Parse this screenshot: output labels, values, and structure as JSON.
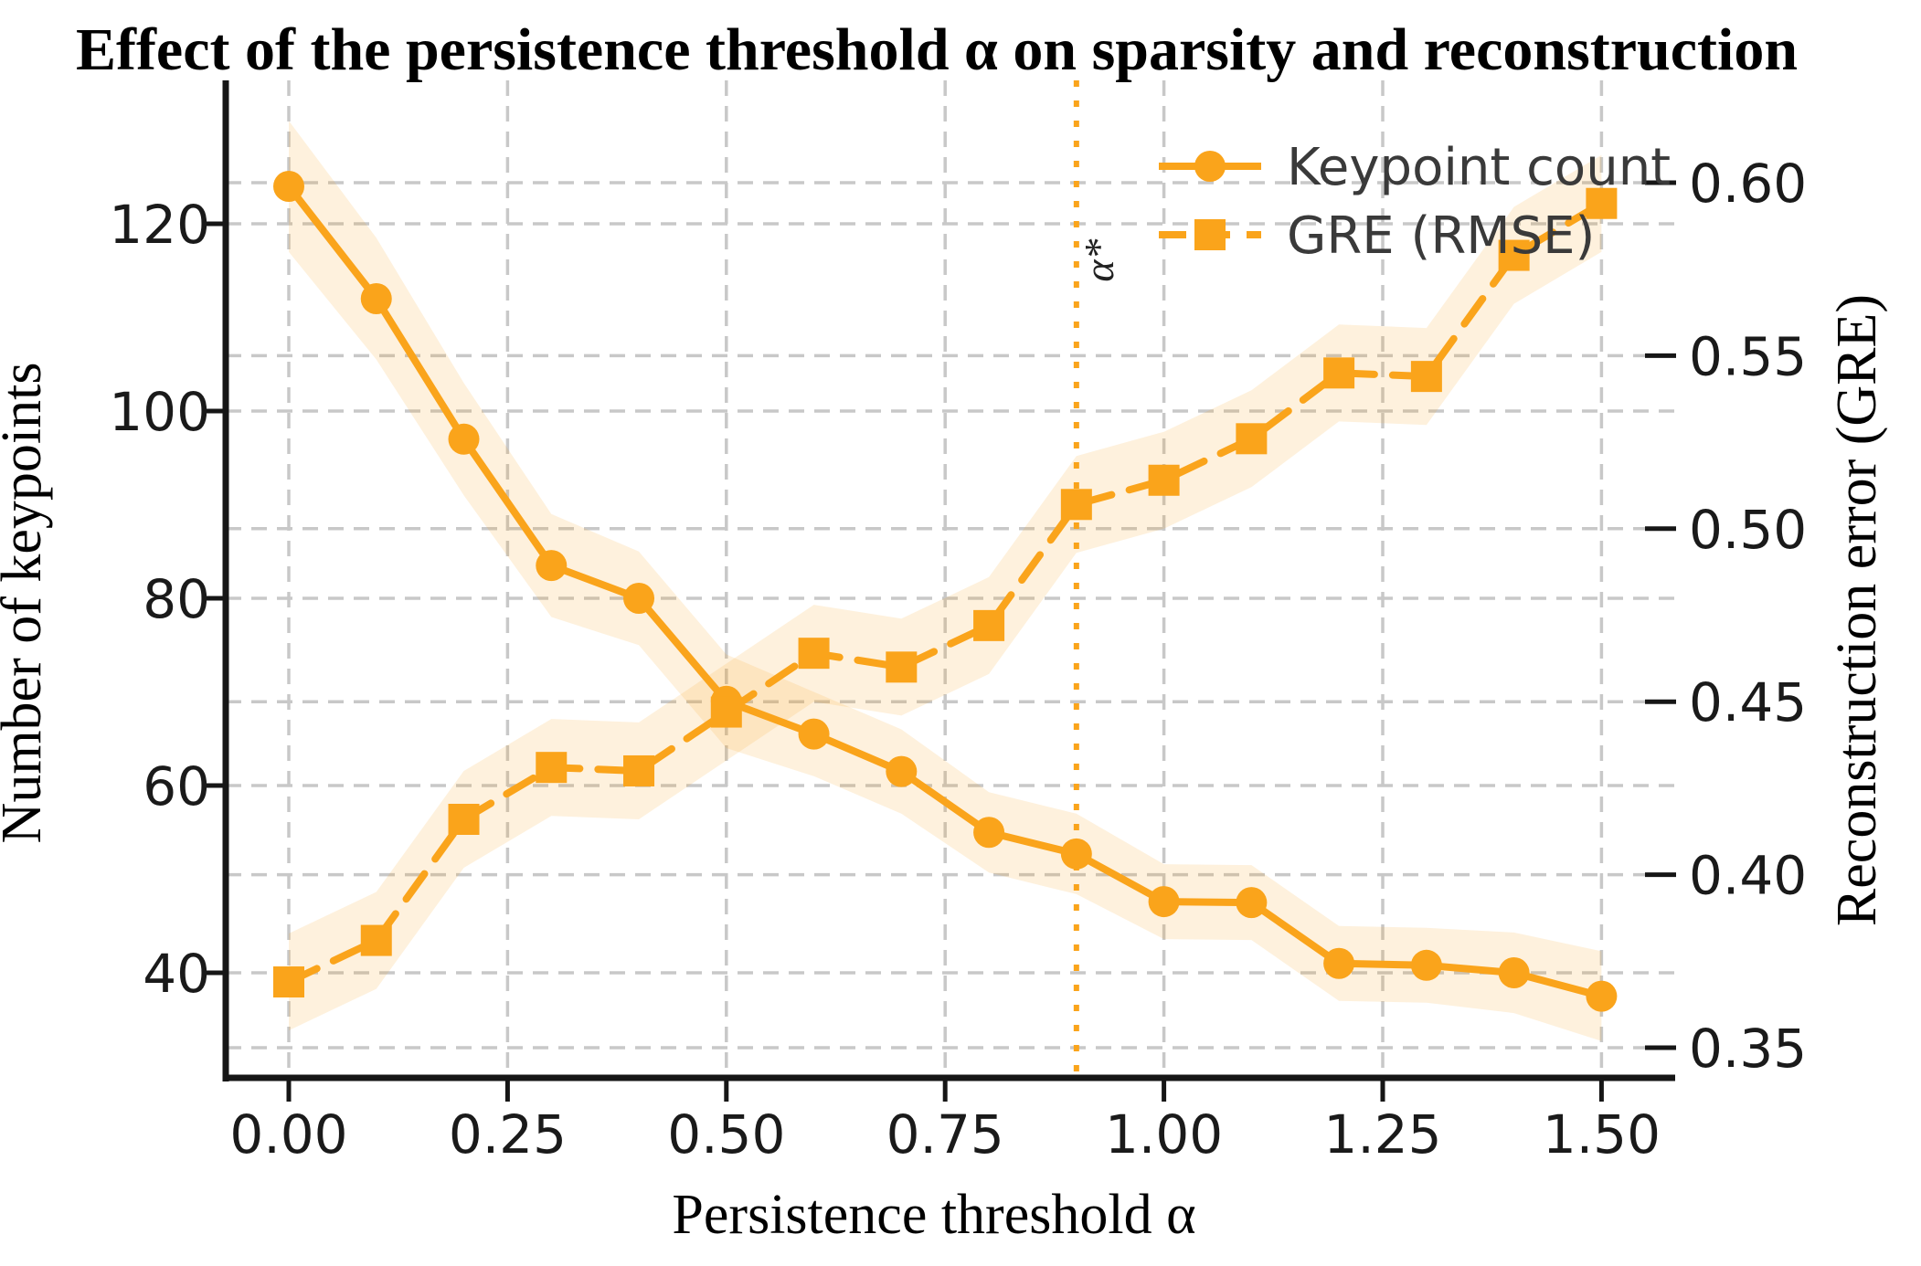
{
  "title": "Effect of the persistence threshold α on sparsity and reconstruction",
  "colors": {
    "series_orange": "#FAA41B",
    "band_fill": "#FAA41B",
    "band_opacity": 0.15,
    "grid": "#C8C8C8",
    "spine": "#161616",
    "tick_text": "#1A1A1A",
    "legend_text": "#3A3A3A",
    "threshold_line": "#FAA41B"
  },
  "chart_data": {
    "type": "line",
    "title": "Effect of the persistence threshold α on sparsity and reconstruction",
    "xlabel": "Persistence threshold α",
    "ylabel_left": "Number of keypoints",
    "ylabel_right": "Reconstruction error (GRE)",
    "grid": true,
    "legend_position": "upper right",
    "xlim": [
      -0.07,
      1.58
    ],
    "ylim_left": [
      29,
      135
    ],
    "ylim_right": [
      0.341,
      0.629
    ],
    "x": [
      0.0,
      0.1,
      0.2,
      0.3,
      0.4,
      0.5,
      0.6,
      0.7,
      0.8,
      0.9,
      1.0,
      1.1,
      1.2,
      1.3,
      1.4,
      1.5
    ],
    "series": [
      {
        "name": "Keypoint count",
        "axis": "left",
        "marker": "circle",
        "linestyle": "solid",
        "values": [
          124,
          112,
          97,
          83.5,
          80,
          69,
          65.5,
          61.5,
          55,
          52.7,
          47.6,
          47.5,
          41,
          40.8,
          40,
          37.5
        ],
        "band_halfwidth": [
          7,
          6.5,
          6,
          5.5,
          5,
          5,
          4.5,
          4.5,
          4.3,
          4.3,
          4,
          4,
          4,
          4,
          4.3,
          4.8
        ]
      },
      {
        "name": "GRE (RMSE)",
        "axis": "right",
        "marker": "square",
        "linestyle": "dashed",
        "values": [
          0.369,
          0.381,
          0.416,
          0.431,
          0.43,
          0.447,
          0.464,
          0.46,
          0.472,
          0.507,
          0.514,
          0.526,
          0.545,
          0.544,
          0.579,
          0.594
        ],
        "band_halfwidth": 0.014
      }
    ],
    "annotation": {
      "label": "α*",
      "x": 0.9,
      "style": "dotted"
    },
    "x_axis": {
      "label": "Persistence threshold α",
      "tick_labels": [
        "0.00",
        "0.25",
        "0.50",
        "0.75",
        "1.00",
        "1.25",
        "1.50"
      ],
      "tick_values": [
        0.0,
        0.25,
        0.5,
        0.75,
        1.0,
        1.25,
        1.5
      ]
    },
    "left_axis": {
      "label": "Number of keypoints",
      "tick_labels": [
        "40",
        "60",
        "80",
        "100",
        "120"
      ],
      "tick_values": [
        40,
        60,
        80,
        100,
        120
      ]
    },
    "right_axis": {
      "label": "Reconstruction error (GRE)",
      "tick_labels": [
        "0.35",
        "0.40",
        "0.45",
        "0.50",
        "0.55",
        "0.60"
      ],
      "tick_values": [
        0.35,
        0.4,
        0.45,
        0.5,
        0.55,
        0.6
      ]
    }
  }
}
